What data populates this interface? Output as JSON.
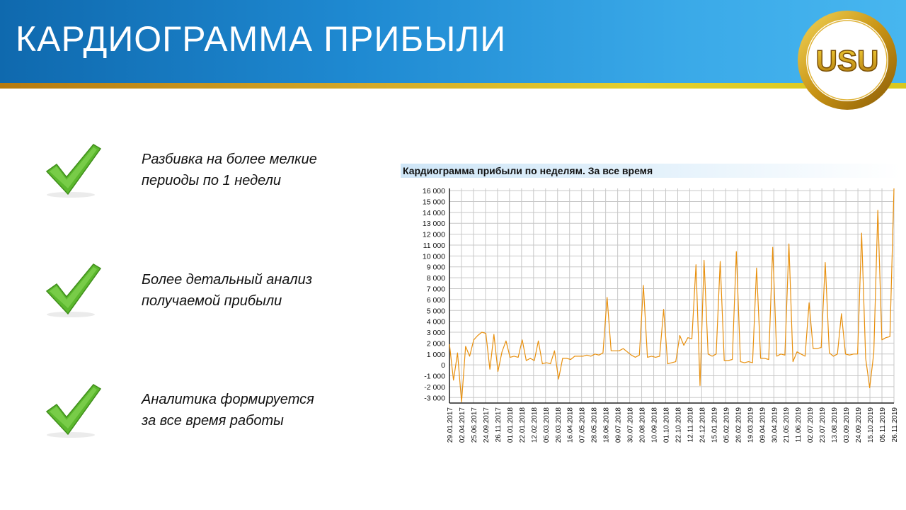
{
  "slide": {
    "title": "КАРДИОГРАММА ПРИБЫЛИ",
    "logo_text": "USU"
  },
  "bullets": [
    {
      "line1": "Разбивка на более мелкие",
      "line2": "периоды по 1 недели",
      "icon": "checkmark-icon"
    },
    {
      "line1": "Более детальный анализ",
      "line2": "получаемой прибыли",
      "icon": "checkmark-icon"
    },
    {
      "line1": "Аналитика формируется",
      "line2": "за все время работы",
      "icon": "checkmark-icon"
    }
  ],
  "colors": {
    "header_blue": "#1f8ad2",
    "gold": "#d3a829",
    "check_green": "#5cb82e",
    "line": "#e8900e",
    "grid": "#c8c8c8"
  },
  "chart_data": {
    "type": "line",
    "title": "Кардиограмма прибыли по неделям. За все время",
    "xlabel": "",
    "ylabel": "",
    "ylim": [
      -3500,
      16200
    ],
    "yticks": [
      16000,
      15000,
      14000,
      13000,
      12000,
      11000,
      10000,
      9000,
      8000,
      7000,
      6000,
      5000,
      4000,
      3000,
      2000,
      1000,
      0,
      -1000,
      -2000,
      -3000
    ],
    "ytick_labels": [
      "16 000",
      "15 000",
      "14 000",
      "13 000",
      "12 000",
      "11 000",
      "10 000",
      "9 000",
      "8 000",
      "7 000",
      "6 000",
      "5 000",
      "4 000",
      "3 000",
      "2 000",
      "1 000",
      "0",
      "-1 000",
      "-2 000",
      "-3 000"
    ],
    "x_labels": [
      "29.01.2017",
      "02.04.2017",
      "25.06.2017",
      "24.09.2017",
      "26.11.2017",
      "01.01.2018",
      "22.01.2018",
      "12.02.2018",
      "05.03.2018",
      "26.03.2018",
      "16.04.2018",
      "07.05.2018",
      "28.05.2018",
      "18.06.2018",
      "09.07.2018",
      "30.07.2018",
      "20.08.2018",
      "10.09.2018",
      "01.10.2018",
      "22.10.2018",
      "12.11.2018",
      "24.12.2018",
      "15.01.2019",
      "05.02.2019",
      "26.02.2019",
      "19.03.2019",
      "09.04.2019",
      "30.04.2019",
      "21.05.2019",
      "11.06.2019",
      "02.07.2019",
      "23.07.2019",
      "13.08.2019",
      "03.09.2019",
      "24.09.2019",
      "15.10.2019",
      "05.11.2019",
      "26.11.2019"
    ],
    "grid": true,
    "series": [
      {
        "values": [
          1900,
          -1400,
          1100,
          -3400,
          1700,
          800,
          2300,
          2700,
          3000,
          2900,
          -400,
          2800,
          -600,
          1200,
          2200,
          700,
          800,
          700,
          2300,
          400,
          600,
          400,
          2200,
          100,
          200,
          100,
          1300,
          -1300,
          600,
          600,
          500,
          800,
          800,
          800,
          900,
          800,
          1000,
          900,
          1100,
          6200,
          1300,
          1300,
          1300,
          1500,
          1200,
          900,
          700,
          900,
          7300,
          700,
          800,
          700,
          800,
          5100,
          100,
          200,
          300,
          2700,
          1800,
          2500,
          2400,
          9200,
          -1900,
          9600,
          1000,
          800,
          1000,
          9500,
          400,
          400,
          500,
          10400,
          300,
          200,
          300,
          200,
          8900,
          600,
          600,
          500,
          10800,
          800,
          1000,
          900,
          11100,
          300,
          1200,
          1000,
          800,
          5700,
          1500,
          1500,
          1600,
          9400,
          1100,
          800,
          1000,
          4700,
          1000,
          900,
          1000,
          1000,
          12100,
          600,
          -2100,
          1100,
          14200,
          2300,
          2500,
          2600,
          16200
        ]
      }
    ]
  }
}
